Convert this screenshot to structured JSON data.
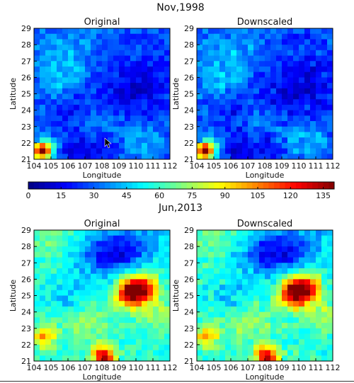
{
  "figure": {
    "colormap": "jet",
    "colorbar": {
      "ticks": [
        "0",
        "15",
        "30",
        "45",
        "60",
        "75",
        "90",
        "105",
        "120",
        "135"
      ],
      "range": [
        0,
        140
      ]
    }
  },
  "chart_data": [
    {
      "type": "heatmap",
      "group_title": "Nov,1998",
      "title": "Original",
      "xlabel": "Longitude",
      "ylabel": "Latitude",
      "xticks": [
        "104",
        "105",
        "106",
        "107",
        "108",
        "109",
        "110",
        "111",
        "112"
      ],
      "yticks": [
        "21",
        "22",
        "23",
        "24",
        "25",
        "26",
        "27",
        "28",
        "29"
      ],
      "xlim": [
        104,
        112
      ],
      "ylim": [
        21,
        29
      ],
      "value_range": [
        0,
        140
      ],
      "grid": false,
      "base_value": 28,
      "hotspots": [
        {
          "lon": 104.45,
          "lat": 21.5,
          "value": 135,
          "radius": 0.35
        },
        {
          "lon": 104.9,
          "lat": 21.7,
          "value": 50,
          "radius": 0.5
        },
        {
          "lon": 105.5,
          "lat": 27.5,
          "value": 42,
          "radius": 1.0
        },
        {
          "lon": 105.2,
          "lat": 25.6,
          "value": 40,
          "radius": 0.7
        },
        {
          "lon": 106.5,
          "lat": 26.2,
          "value": 35,
          "radius": 0.8
        },
        {
          "lon": 107.5,
          "lat": 28.6,
          "value": 33,
          "radius": 1.0
        },
        {
          "lon": 109.3,
          "lat": 24.9,
          "value": 14,
          "radius": 1.2
        },
        {
          "lon": 106.5,
          "lat": 24.0,
          "value": 18,
          "radius": 0.9
        },
        {
          "lon": 108.0,
          "lat": 23.5,
          "value": 40,
          "radius": 1.0
        },
        {
          "lon": 110.5,
          "lat": 22.0,
          "value": 42,
          "radius": 0.8
        },
        {
          "lon": 111.2,
          "lat": 26.0,
          "value": 20,
          "radius": 1.0
        },
        {
          "lon": 106.3,
          "lat": 21.6,
          "value": 12,
          "radius": 0.6
        },
        {
          "lon": 108.0,
          "lat": 21.5,
          "value": 14,
          "radius": 0.7
        }
      ]
    },
    {
      "type": "heatmap",
      "group_title": "Nov,1998",
      "title": "Downscaled",
      "xlabel": "Longitude",
      "ylabel": "Latitude",
      "xticks": [
        "104",
        "105",
        "106",
        "107",
        "108",
        "109",
        "110",
        "111",
        "112"
      ],
      "yticks": [
        "21",
        "22",
        "23",
        "24",
        "25",
        "26",
        "27",
        "28",
        "29"
      ],
      "xlim": [
        104,
        112
      ],
      "ylim": [
        21,
        29
      ],
      "value_range": [
        0,
        140
      ],
      "grid": false,
      "base_value": 28,
      "hotspots": [
        {
          "lon": 104.45,
          "lat": 21.5,
          "value": 135,
          "radius": 0.35
        },
        {
          "lon": 104.9,
          "lat": 21.7,
          "value": 50,
          "radius": 0.5
        },
        {
          "lon": 105.5,
          "lat": 27.5,
          "value": 42,
          "radius": 1.0
        },
        {
          "lon": 105.2,
          "lat": 25.6,
          "value": 40,
          "radius": 0.7
        },
        {
          "lon": 106.5,
          "lat": 26.2,
          "value": 35,
          "radius": 0.8
        },
        {
          "lon": 107.5,
          "lat": 28.6,
          "value": 33,
          "radius": 1.0
        },
        {
          "lon": 109.3,
          "lat": 24.9,
          "value": 14,
          "radius": 1.2
        },
        {
          "lon": 106.5,
          "lat": 24.0,
          "value": 18,
          "radius": 0.9
        },
        {
          "lon": 108.0,
          "lat": 23.5,
          "value": 40,
          "radius": 1.0
        },
        {
          "lon": 110.5,
          "lat": 22.0,
          "value": 42,
          "radius": 0.8
        },
        {
          "lon": 111.2,
          "lat": 26.0,
          "value": 20,
          "radius": 1.0
        },
        {
          "lon": 106.3,
          "lat": 21.6,
          "value": 12,
          "radius": 0.6
        },
        {
          "lon": 108.0,
          "lat": 21.5,
          "value": 14,
          "radius": 0.7
        }
      ]
    },
    {
      "type": "heatmap",
      "group_title": "Jun,2013",
      "title": "Original",
      "xlabel": "Longitude",
      "ylabel": "Latitude",
      "xticks": [
        "104",
        "105",
        "106",
        "107",
        "108",
        "109",
        "110",
        "111",
        "112"
      ],
      "yticks": [
        "21",
        "22",
        "23",
        "24",
        "25",
        "26",
        "27",
        "28",
        "29"
      ],
      "xlim": [
        104,
        112
      ],
      "ylim": [
        21,
        29
      ],
      "value_range": [
        0,
        140
      ],
      "grid": false,
      "base_value": 58,
      "hotspots": [
        {
          "lon": 109.7,
          "lat": 25.2,
          "value": 138,
          "radius": 0.6
        },
        {
          "lon": 110.4,
          "lat": 25.5,
          "value": 110,
          "radius": 0.6
        },
        {
          "lon": 108.1,
          "lat": 21.3,
          "value": 130,
          "radius": 0.45
        },
        {
          "lon": 104.6,
          "lat": 22.5,
          "value": 100,
          "radius": 0.5
        },
        {
          "lon": 108.0,
          "lat": 27.5,
          "value": 28,
          "radius": 1.1
        },
        {
          "lon": 109.5,
          "lat": 27.8,
          "value": 30,
          "radius": 0.9
        },
        {
          "lon": 106.0,
          "lat": 24.8,
          "value": 42,
          "radius": 0.9
        },
        {
          "lon": 107.0,
          "lat": 23.5,
          "value": 74,
          "radius": 1.0
        },
        {
          "lon": 111.3,
          "lat": 24.0,
          "value": 72,
          "radius": 0.8
        },
        {
          "lon": 105.0,
          "lat": 28.5,
          "value": 70,
          "radius": 0.8
        },
        {
          "lon": 111.0,
          "lat": 28.3,
          "value": 45,
          "radius": 0.8
        }
      ]
    },
    {
      "type": "heatmap",
      "group_title": "Jun,2013",
      "title": "Downscaled",
      "xlabel": "Longitude",
      "ylabel": "Latitude",
      "xticks": [
        "104",
        "105",
        "106",
        "107",
        "108",
        "109",
        "110",
        "111",
        "112"
      ],
      "yticks": [
        "21",
        "22",
        "23",
        "24",
        "25",
        "26",
        "27",
        "28",
        "29"
      ],
      "xlim": [
        104,
        112
      ],
      "ylim": [
        21,
        29
      ],
      "value_range": [
        0,
        140
      ],
      "grid": false,
      "base_value": 58,
      "hotspots": [
        {
          "lon": 109.7,
          "lat": 25.2,
          "value": 138,
          "radius": 0.6
        },
        {
          "lon": 110.4,
          "lat": 25.5,
          "value": 110,
          "radius": 0.6
        },
        {
          "lon": 108.1,
          "lat": 21.3,
          "value": 130,
          "radius": 0.45
        },
        {
          "lon": 104.6,
          "lat": 22.5,
          "value": 100,
          "radius": 0.5
        },
        {
          "lon": 108.0,
          "lat": 27.5,
          "value": 28,
          "radius": 1.1
        },
        {
          "lon": 109.5,
          "lat": 27.8,
          "value": 30,
          "radius": 0.9
        },
        {
          "lon": 106.0,
          "lat": 24.8,
          "value": 42,
          "radius": 0.9
        },
        {
          "lon": 107.0,
          "lat": 23.5,
          "value": 74,
          "radius": 1.0
        },
        {
          "lon": 111.3,
          "lat": 24.0,
          "value": 72,
          "radius": 0.8
        },
        {
          "lon": 105.0,
          "lat": 28.5,
          "value": 70,
          "radius": 0.8
        },
        {
          "lon": 111.0,
          "lat": 28.3,
          "value": 45,
          "radius": 0.8
        }
      ]
    }
  ]
}
